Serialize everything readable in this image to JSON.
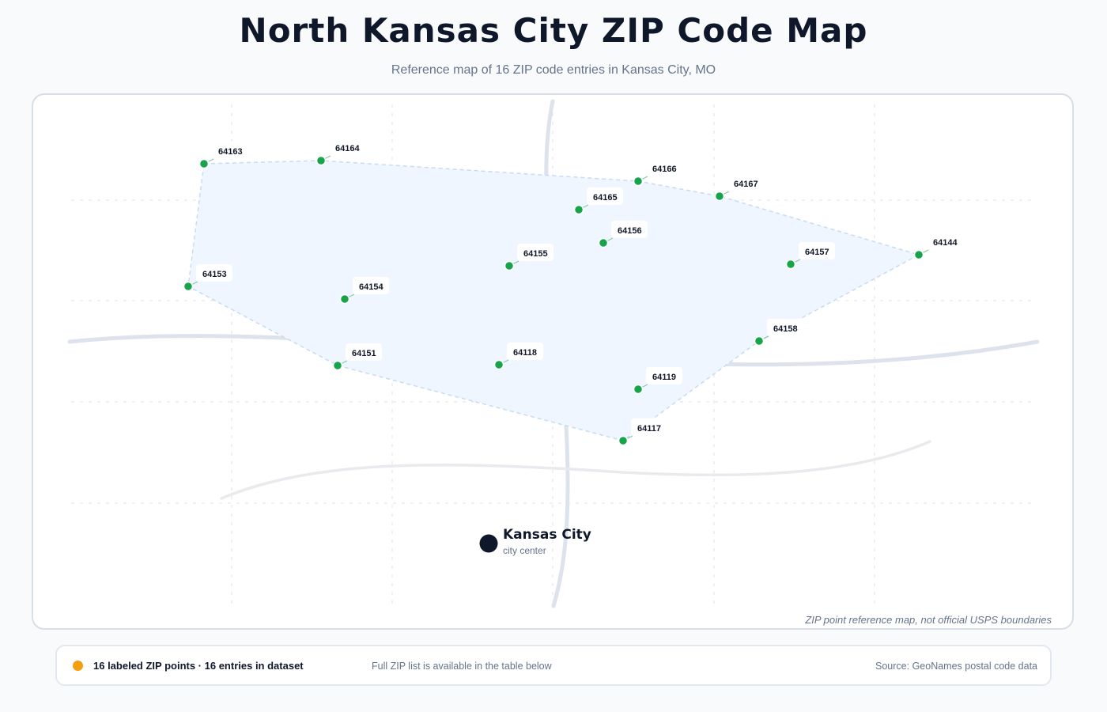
{
  "title": "North Kansas City ZIP Code Map",
  "subtitle": "Reference map of 16 ZIP code entries in Kansas City, MO",
  "colors": {
    "zip_point": "#16a34a",
    "city_marker": "#0f172a",
    "area_fill": "#eff6ff",
    "footer_dot": "#f59e0b"
  },
  "city": {
    "name": "Kansas City",
    "caption": "city center"
  },
  "zip_points": [
    {
      "zip": "64163"
    },
    {
      "zip": "64164"
    },
    {
      "zip": "64166"
    },
    {
      "zip": "64167"
    },
    {
      "zip": "64165"
    },
    {
      "zip": "64156"
    },
    {
      "zip": "64144"
    },
    {
      "zip": "64157"
    },
    {
      "zip": "64155"
    },
    {
      "zip": "64153"
    },
    {
      "zip": "64154"
    },
    {
      "zip": "64158"
    },
    {
      "zip": "64151"
    },
    {
      "zip": "64118"
    },
    {
      "zip": "64119"
    },
    {
      "zip": "64117"
    }
  ],
  "disclaimer": "ZIP point reference map, not official USPS boundaries",
  "footer": {
    "count_text": "16 labeled ZIP points · 16 entries in dataset",
    "note": "Full ZIP list is available in the table below",
    "source": "Source: GeoNames postal code data"
  }
}
